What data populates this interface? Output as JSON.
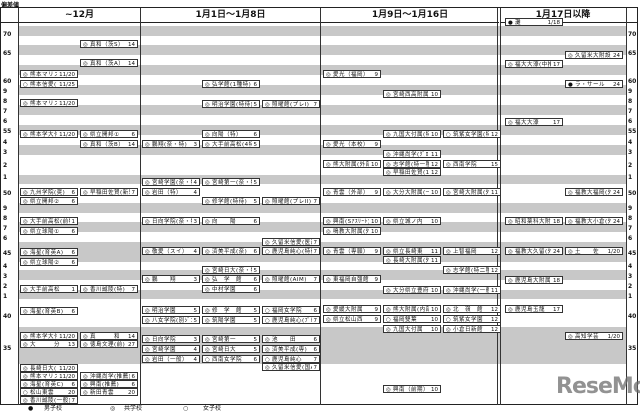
{
  "corner_label": "偏差値",
  "columns": [
    {
      "title": "~12月",
      "entries": [
        {
          "mark": "◎",
          "name": "真和（茨S）",
          "num": "14"
        },
        {
          "mark": "◎",
          "name": "真和（茨A）",
          "num": "14"
        },
        {
          "mark": "◎",
          "name": "熊本マリスト(奨S)",
          "num": "11/20"
        },
        {
          "mark": "○",
          "name": "熊本信愛(前A)",
          "num": "11/25"
        },
        {
          "mark": "◎",
          "name": "熊本マリスト(奨A)",
          "num": "11/20"
        },
        {
          "mark": "◎",
          "name": "熊本学大付(奨A)",
          "num": "11/20"
        },
        {
          "mark": "◎",
          "name": "県立開邦①",
          "num": "6"
        },
        {
          "mark": "◎",
          "name": "真和（茨B）",
          "num": "14"
        },
        {
          "mark": "◎",
          "name": "九州学院(奨)",
          "num": "6"
        },
        {
          "mark": "◎",
          "name": "早稲田佐賀(新思)",
          "num": "7"
        },
        {
          "mark": "◎",
          "name": "県立開邦②",
          "num": "6"
        },
        {
          "mark": "◎",
          "name": "大手前高松(前特)",
          "num": "1"
        },
        {
          "mark": "◎",
          "name": "県立球陽①",
          "num": "6"
        },
        {
          "mark": "◎",
          "name": "海星(育英A)",
          "num": "6"
        },
        {
          "mark": "◎",
          "name": "県立球陽②",
          "num": "6"
        },
        {
          "mark": "◎",
          "name": "大手前高松",
          "num": "1"
        },
        {
          "mark": "◎",
          "name": "香川誠陵(特)",
          "num": "7"
        },
        {
          "mark": "◎",
          "name": "海星(育英B)",
          "num": "6"
        },
        {
          "mark": "◎",
          "name": "熊本学大付",
          "num": "11/20"
        },
        {
          "mark": "◎",
          "name": "真　　　和",
          "num": "14"
        },
        {
          "mark": "◎",
          "name": "大　　　分",
          "num": "13"
        },
        {
          "mark": "◎",
          "name": "徳島文理(前)",
          "num": "27"
        },
        {
          "mark": "◎",
          "name": "長崎日大(1回)",
          "num": "11/20"
        },
        {
          "mark": "◎",
          "name": "熊本マリスト",
          "num": "11/20"
        },
        {
          "mark": "◎",
          "name": "沖縄尚学(推薦)",
          "num": "6"
        },
        {
          "mark": "◎",
          "name": "海星(育英C)",
          "num": "6"
        },
        {
          "mark": "◎",
          "name": "興南(推薦)",
          "num": "6"
        },
        {
          "mark": "○",
          "name": "松山東雲",
          "num": "20"
        },
        {
          "mark": "◎",
          "name": "新田青雲",
          "num": "20"
        },
        {
          "mark": "◎",
          "name": "香川誠陵(一般)",
          "num": "7"
        }
      ]
    },
    {
      "title": "1月1日～1月8日",
      "entries": [
        {
          "mark": "◎",
          "name": "弘学館(1種特)",
          "num": "6"
        },
        {
          "mark": "◎",
          "name": "明治学園(特待)",
          "num": "5"
        },
        {
          "mark": "◎",
          "name": "照曜館(プレI)",
          "num": "7"
        },
        {
          "mark": "◎",
          "name": "向陽（特）",
          "num": "6"
        },
        {
          "mark": "◎",
          "name": "鵬翔(奈・特)",
          "num": "3"
        },
        {
          "mark": "◎",
          "name": "大手前高松(4特)",
          "num": "5"
        },
        {
          "mark": "◎",
          "name": "宮崎学園(奈・特)",
          "num": "4"
        },
        {
          "mark": "◎",
          "name": "宮崎第一(奈・特)",
          "num": "5"
        },
        {
          "mark": "◎",
          "name": "岩田（特）",
          "num": "4"
        },
        {
          "mark": "◎",
          "name": "修学館(特待)",
          "num": "5"
        },
        {
          "mark": "◎",
          "name": "照曜館(プレII)",
          "num": "7"
        },
        {
          "mark": "◎",
          "name": "日向学院(奈・特)",
          "num": "3"
        },
        {
          "mark": "◎",
          "name": "向　　陽",
          "num": "6"
        },
        {
          "mark": "◎",
          "name": "久留米信愛(医進)",
          "num": "7"
        },
        {
          "mark": "◎",
          "name": "敬愛（スイ）",
          "num": "4"
        },
        {
          "mark": "◎",
          "name": "済美平成(奈)",
          "num": "6"
        },
        {
          "mark": "○",
          "name": "鹿児島純心(特待)",
          "num": "7"
        },
        {
          "mark": "◎",
          "name": "宮崎日大(奈・特)",
          "num": "5"
        },
        {
          "mark": "◎",
          "name": "鵬　　翔",
          "num": "3"
        },
        {
          "mark": "◎",
          "name": "弘　学　館",
          "num": "6"
        },
        {
          "mark": "◎",
          "name": "照曜館(AIM)",
          "num": "7"
        },
        {
          "mark": "◎",
          "name": "中村学園",
          "num": "6"
        },
        {
          "mark": "◎",
          "name": "明治学園",
          "num": "5"
        },
        {
          "mark": "◎",
          "name": "修　学　館",
          "num": "5"
        },
        {
          "mark": "○",
          "name": "福岡女学院",
          "num": "6"
        },
        {
          "mark": "◎",
          "name": "八女学院(別ｼﾞ1)",
          "num": "5"
        },
        {
          "mark": "◎",
          "name": "筑陽学園",
          "num": "5"
        },
        {
          "mark": "○",
          "name": "鹿児島純心(ﾌﾟﾄﾞ)",
          "num": "7"
        },
        {
          "mark": "◎",
          "name": "日向学院",
          "num": "3"
        },
        {
          "mark": "◎",
          "name": "宮崎第一",
          "num": "5"
        },
        {
          "mark": "◎",
          "name": "池　　田",
          "num": "6"
        },
        {
          "mark": "◎",
          "name": "宮崎学園",
          "num": "4"
        },
        {
          "mark": "◎",
          "name": "宮崎日大",
          "num": "5"
        },
        {
          "mark": "◎",
          "name": "済美平成(専)",
          "num": "6"
        },
        {
          "mark": "◎",
          "name": "岩田（一般）",
          "num": "4"
        },
        {
          "mark": "○",
          "name": "西南女学院",
          "num": "6"
        },
        {
          "mark": "○",
          "name": "鹿児島純心",
          "num": "7"
        },
        {
          "mark": "◎",
          "name": "久留米信愛(国A人)",
          "num": "7"
        }
      ]
    },
    {
      "title": "1月9日～1月16日",
      "entries": [
        {
          "mark": "◎",
          "name": "愛光（福岡）",
          "num": "9"
        },
        {
          "mark": "◎",
          "name": "宮崎西高附属",
          "num": "10"
        },
        {
          "mark": "◎",
          "name": "九国大付属(特待)",
          "num": "10"
        },
        {
          "mark": "○",
          "name": "筑紫女学園(特待)",
          "num": "12"
        },
        {
          "mark": "◎",
          "name": "愛光（本校）",
          "num": "9"
        },
        {
          "mark": "◎",
          "name": "沖縄尚学(ｸﾞﾛｰﾊﾞﾙ)",
          "num": "11"
        },
        {
          "mark": "◎",
          "name": "熊大附属(外部)",
          "num": "10"
        },
        {
          "mark": "◎",
          "name": "志学館(特一種)",
          "num": "12"
        },
        {
          "mark": "◎",
          "name": "西南学院",
          "num": "15"
        },
        {
          "mark": "◎",
          "name": "早稲田佐賀(1月)",
          "num": "12"
        },
        {
          "mark": "◎",
          "name": "青雲（外部）",
          "num": "9"
        },
        {
          "mark": "◎",
          "name": "大分大附属(一般)",
          "num": "10"
        },
        {
          "mark": "◎",
          "name": "宮崎大附属(外部)",
          "num": "11"
        },
        {
          "mark": "◎",
          "name": "興南(Sｱｽﾘｰﾄ)",
          "num": "10"
        },
        {
          "mark": "◎",
          "name": "県立城ノ内",
          "num": "10"
        },
        {
          "mark": "◎",
          "name": "鳴教大附属(外部)",
          "num": "10"
        },
        {
          "mark": "◎",
          "name": "青雲（専願）",
          "num": "9"
        },
        {
          "mark": "◎",
          "name": "県立長崎東",
          "num": "11"
        },
        {
          "mark": "◎",
          "name": "上智福岡",
          "num": "12"
        },
        {
          "mark": "◎",
          "name": "長崎大附属(外部)",
          "num": "11"
        },
        {
          "mark": "◎",
          "name": "志学館(特二種)",
          "num": "12"
        },
        {
          "mark": "◎",
          "name": "東福岡自彊館",
          "num": "9"
        },
        {
          "mark": "◎",
          "name": "大分県立豊府",
          "num": "10"
        },
        {
          "mark": "◎",
          "name": "沖縄尚学(一般)",
          "num": "11"
        },
        {
          "mark": "◎",
          "name": "愛媛大附属",
          "num": "9"
        },
        {
          "mark": "◎",
          "name": "熊大附属(内部)",
          "num": "10"
        },
        {
          "mark": "◎",
          "name": "北　嶺　館",
          "num": "12"
        },
        {
          "mark": "◎",
          "name": "県立松山西",
          "num": "9"
        },
        {
          "mark": "○",
          "name": "福岡雙葉",
          "num": "10"
        },
        {
          "mark": "○",
          "name": "筑紫女学園",
          "num": "12"
        },
        {
          "mark": "◎",
          "name": "九国大付属",
          "num": "10"
        },
        {
          "mark": "◎",
          "name": "小倉日新館",
          "num": "12"
        },
        {
          "mark": "◎",
          "name": "興南（前期）",
          "num": "10"
        }
      ]
    },
    {
      "title": "1月17日以降",
      "entries": [
        {
          "mark": "●",
          "name": "灘",
          "num": "1/18"
        },
        {
          "mark": "◎",
          "name": "久留米大附設",
          "num": "24"
        },
        {
          "mark": "◎",
          "name": "福大大濠(中推薦)",
          "num": "17"
        },
        {
          "mark": "●",
          "name": "ラ・サール",
          "num": "24"
        },
        {
          "mark": "◎",
          "name": "福大大濠",
          "num": "17"
        },
        {
          "mark": "◎",
          "name": "福教大福岡(外部)",
          "num": "24"
        },
        {
          "mark": "◎",
          "name": "昭和薬科大附",
          "num": "18"
        },
        {
          "mark": "◎",
          "name": "福教大小倉(外部)",
          "num": "24"
        },
        {
          "mark": "◎",
          "name": "福教大久留(外部)",
          "num": "24"
        },
        {
          "mark": "◎",
          "name": "土　　佐",
          "num": "1/20"
        },
        {
          "mark": "◎",
          "name": "鹿児島大附属",
          "num": "18"
        },
        {
          "mark": "◎",
          "name": "鹿児島玉龍",
          "num": "17"
        },
        {
          "mark": "◎",
          "name": "高知学芸",
          "num": "1/20"
        }
      ]
    }
  ],
  "axis_left": [
    "70",
    "65",
    "60",
    "9",
    "8",
    "7",
    "6",
    "55",
    "4",
    "3",
    "2",
    "1",
    "50",
    "9",
    "8",
    "7",
    "6",
    "45",
    "4",
    "3",
    "2",
    "1",
    "40",
    "35"
  ],
  "axis_right": [
    "70",
    "65",
    "60",
    "9",
    "8",
    "7",
    "6",
    "55",
    "4",
    "3",
    "2",
    "1",
    "50",
    "9",
    "8",
    "7",
    "6",
    "45",
    "4",
    "3",
    "2",
    "1",
    "40",
    "35"
  ],
  "legend": [
    {
      "mark": "●",
      "label": "男子校"
    },
    {
      "mark": "◎",
      "label": "共学校"
    },
    {
      "mark": "○",
      "label": "女子校"
    }
  ],
  "watermark": "ReseMom",
  "colors": {
    "stripe": "#c8c8c8",
    "border": "#222222"
  }
}
